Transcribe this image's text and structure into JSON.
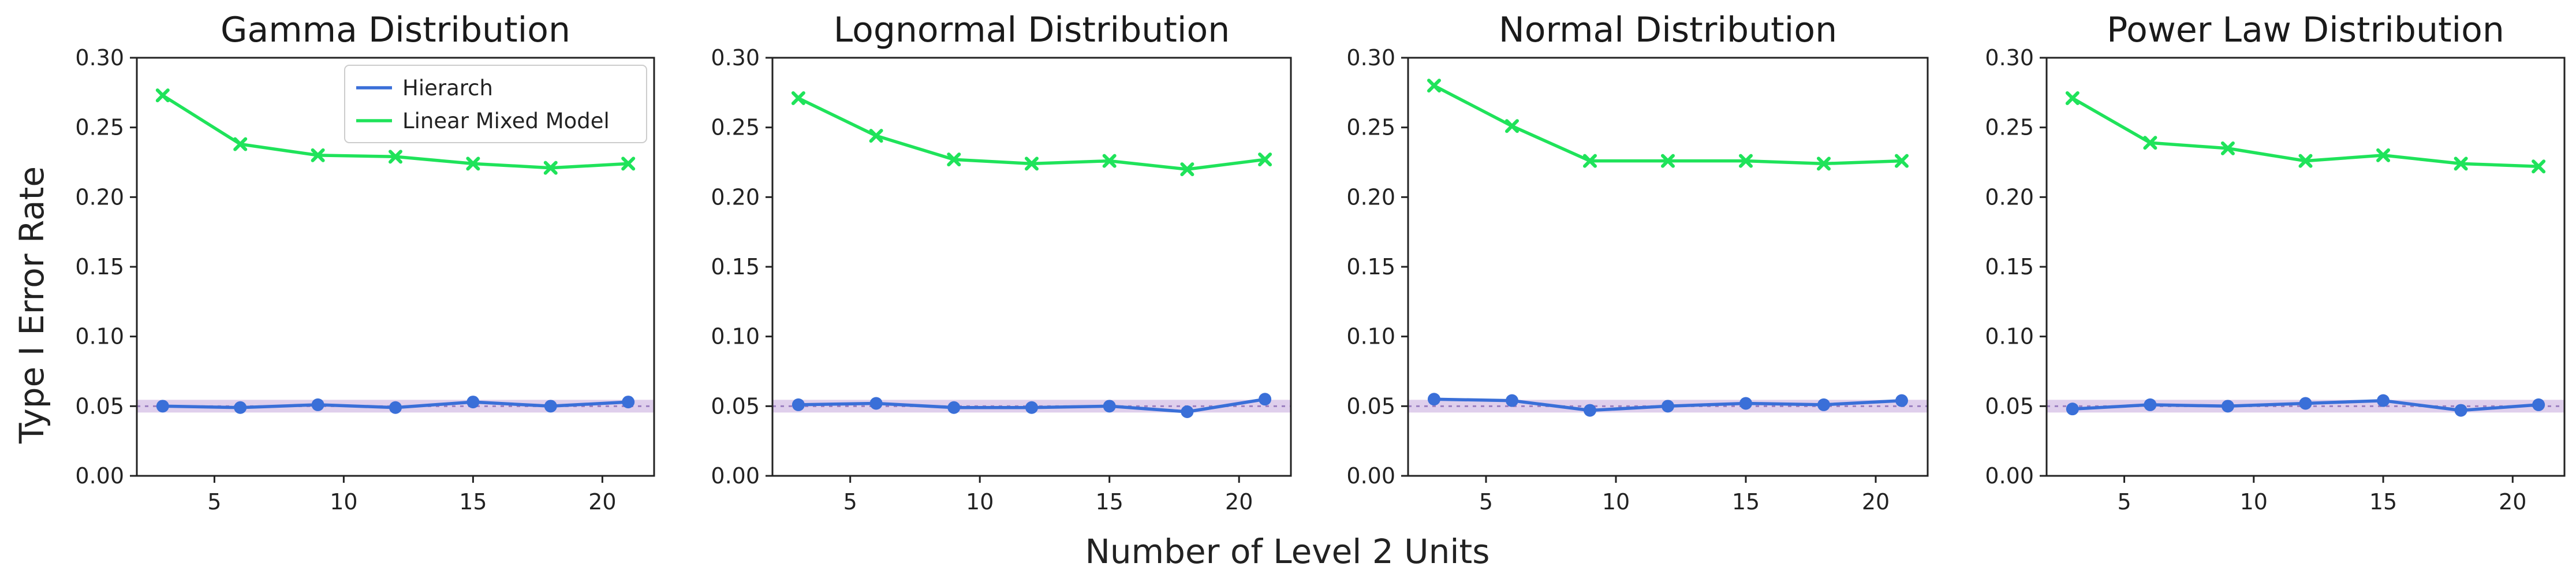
{
  "figure": {
    "ylabel": "Type I Error Rate",
    "xlabel": "Number of Level 2 Units"
  },
  "colors": {
    "hierarch": "#3a6fd8",
    "lmm": "#1fe35a",
    "band": "#c4a7dc",
    "reference": "#9b7fc0",
    "axis": "#222222"
  },
  "legend": {
    "placement": "top-right",
    "entries": [
      "Hierarch",
      "Linear Mixed Model"
    ]
  },
  "chart_data": [
    {
      "type": "line",
      "title": "Gamma Distribution",
      "x": [
        3,
        6,
        9,
        12,
        15,
        18,
        21
      ],
      "xticks": [
        5,
        10,
        15,
        20
      ],
      "xlim": [
        2,
        22
      ],
      "ylim": [
        0.0,
        0.3
      ],
      "yticks": [
        "0.00",
        "0.05",
        "0.10",
        "0.15",
        "0.20",
        "0.25",
        "0.30"
      ],
      "reference_line": 0.05,
      "series": [
        {
          "name": "Hierarch",
          "marker": "circle",
          "values": [
            0.05,
            0.049,
            0.051,
            0.049,
            0.053,
            0.05,
            0.053
          ]
        },
        {
          "name": "Linear Mixed Model",
          "marker": "x",
          "values": [
            0.273,
            0.238,
            0.23,
            0.229,
            0.224,
            0.221,
            0.224
          ]
        }
      ],
      "show_legend": true
    },
    {
      "type": "line",
      "title": "Lognormal Distribution",
      "x": [
        3,
        6,
        9,
        12,
        15,
        18,
        21
      ],
      "xticks": [
        5,
        10,
        15,
        20
      ],
      "xlim": [
        2,
        22
      ],
      "ylim": [
        0.0,
        0.3
      ],
      "yticks": [
        "0.00",
        "0.05",
        "0.10",
        "0.15",
        "0.20",
        "0.25",
        "0.30"
      ],
      "reference_line": 0.05,
      "series": [
        {
          "name": "Hierarch",
          "marker": "circle",
          "values": [
            0.051,
            0.052,
            0.049,
            0.049,
            0.05,
            0.046,
            0.055
          ]
        },
        {
          "name": "Linear Mixed Model",
          "marker": "x",
          "values": [
            0.271,
            0.244,
            0.227,
            0.224,
            0.226,
            0.22,
            0.227
          ]
        }
      ],
      "show_legend": false
    },
    {
      "type": "line",
      "title": "Normal Distribution",
      "x": [
        3,
        6,
        9,
        12,
        15,
        18,
        21
      ],
      "xticks": [
        5,
        10,
        15,
        20
      ],
      "xlim": [
        2,
        22
      ],
      "ylim": [
        0.0,
        0.3
      ],
      "yticks": [
        "0.00",
        "0.05",
        "0.10",
        "0.15",
        "0.20",
        "0.25",
        "0.30"
      ],
      "reference_line": 0.05,
      "series": [
        {
          "name": "Hierarch",
          "marker": "circle",
          "values": [
            0.055,
            0.054,
            0.047,
            0.05,
            0.052,
            0.051,
            0.054
          ]
        },
        {
          "name": "Linear Mixed Model",
          "marker": "x",
          "values": [
            0.28,
            0.251,
            0.226,
            0.226,
            0.226,
            0.224,
            0.226
          ]
        }
      ],
      "show_legend": false
    },
    {
      "type": "line",
      "title": "Power Law Distribution",
      "x": [
        3,
        6,
        9,
        12,
        15,
        18,
        21
      ],
      "xticks": [
        5,
        10,
        15,
        20
      ],
      "xlim": [
        2,
        22
      ],
      "ylim": [
        0.0,
        0.3
      ],
      "yticks": [
        "0.00",
        "0.05",
        "0.10",
        "0.15",
        "0.20",
        "0.25",
        "0.30"
      ],
      "reference_line": 0.05,
      "series": [
        {
          "name": "Hierarch",
          "marker": "circle",
          "values": [
            0.048,
            0.051,
            0.05,
            0.052,
            0.054,
            0.047,
            0.051
          ]
        },
        {
          "name": "Linear Mixed Model",
          "marker": "x",
          "values": [
            0.271,
            0.239,
            0.235,
            0.226,
            0.23,
            0.224,
            0.222
          ]
        }
      ],
      "show_legend": false
    }
  ]
}
